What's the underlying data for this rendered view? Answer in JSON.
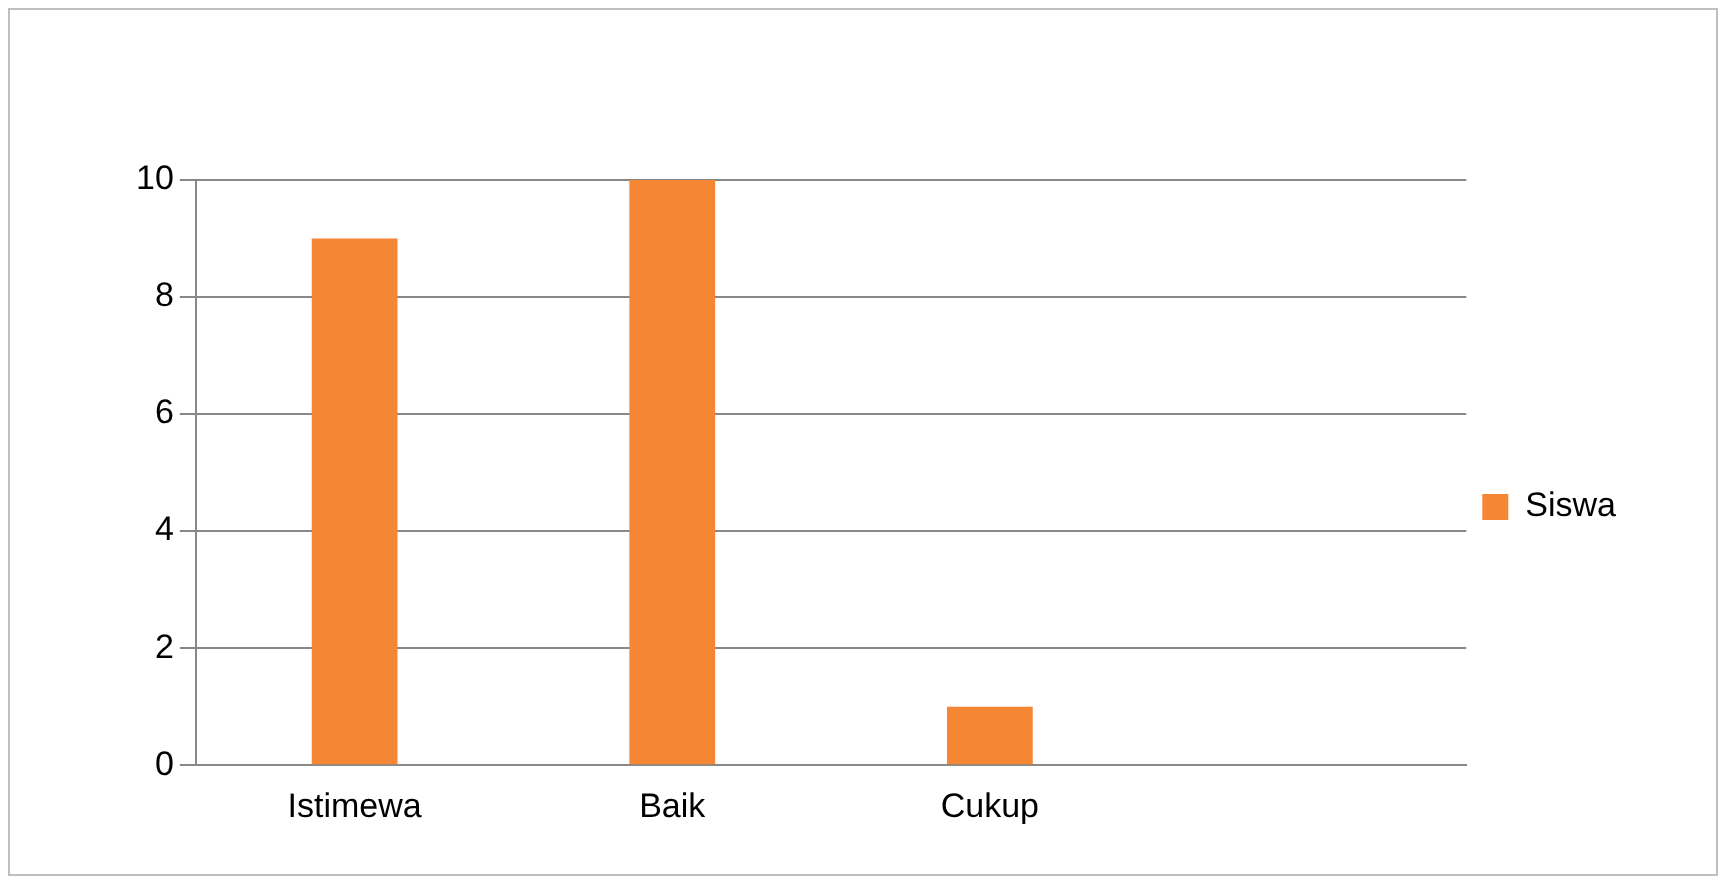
{
  "chart_data": {
    "type": "bar",
    "categories": [
      "Istimewa",
      "Baik",
      "Cukup",
      null
    ],
    "series": [
      {
        "name": "Siswa",
        "color": "#f58634",
        "values": [
          9,
          10,
          1,
          null
        ]
      }
    ],
    "ylim": [
      0,
      10
    ],
    "yticks": [
      0,
      2,
      4,
      6,
      8,
      10
    ],
    "grid": "y",
    "legend": "right"
  }
}
